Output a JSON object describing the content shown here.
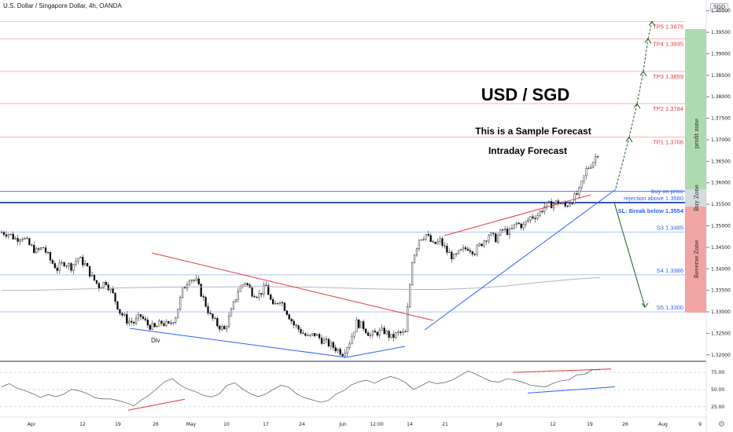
{
  "header": {
    "title": "U.S. Dollar / Singapore Dollar, 4h, OANDA",
    "currency": "SGD"
  },
  "annotations": {
    "main_title": "USD / SGD",
    "subtitle1": "This is a Sample Forecast",
    "subtitle2": "Intraday Forecast",
    "div_label": "Div",
    "buy_on_price": "buy on price",
    "rejection": "rejection above 1.3580",
    "stop_loss": "SL: Break below 1.3554",
    "profit_zone": "profit zone",
    "buy_zone": "Buy Zone",
    "reverse_zone": "Reverse Zone"
  },
  "colors": {
    "tp": "#e53935",
    "support": "#2962ff",
    "profit_zone": "#a5d6a7",
    "reverse_zone": "#ef9a9a",
    "buy_zone": "#cfd8dc",
    "arrows": "#1b5e20"
  },
  "chart_data": {
    "type": "candlestick",
    "price_ticks": [
      "1.40000",
      "1.39500",
      "1.39000",
      "1.38500",
      "1.38000",
      "1.37500",
      "1.37000",
      "1.36500",
      "1.36000",
      "1.35500",
      "1.35000",
      "1.34500",
      "1.34000",
      "1.33500",
      "1.33000",
      "1.32500",
      "1.32000"
    ],
    "price_tick_values": [
      1.4,
      1.395,
      1.39,
      1.385,
      1.38,
      1.375,
      1.37,
      1.365,
      1.36,
      1.355,
      1.35,
      1.345,
      1.34,
      1.335,
      1.33,
      1.325,
      1.32
    ],
    "ylim": [
      1.3185,
      1.4025
    ],
    "x_ticks": [
      "Apr",
      "12",
      "19",
      "26",
      "May",
      "10",
      "17",
      "24",
      "Jun",
      "12:00",
      "14",
      "21",
      "Jul",
      "12",
      "19",
      "26",
      "Aug",
      "9"
    ],
    "tp_levels": [
      {
        "label": "TP5  1.3975",
        "value": 1.3975
      },
      {
        "label": "TP4  1.3935",
        "value": 1.3935
      },
      {
        "label": "TP3  1.3859",
        "value": 1.3859
      },
      {
        "label": "TP2  1.3784",
        "value": 1.3784
      },
      {
        "label": "TP1  1.3706",
        "value": 1.3706
      }
    ],
    "support_levels": [
      {
        "label": "S3  1.3485",
        "value": 1.3485
      },
      {
        "label": "S4  1.3386",
        "value": 1.3386
      },
      {
        "label": "S5  1.3300",
        "value": 1.33
      }
    ],
    "buy_level": 1.358,
    "sl_level": 1.3554,
    "close_path": [
      1.3485,
      1.3482,
      1.347,
      1.3475,
      1.3455,
      1.344,
      1.345,
      1.342,
      1.34,
      1.3415,
      1.3405,
      1.3425,
      1.341,
      1.338,
      1.336,
      1.337,
      1.334,
      1.33,
      1.328,
      1.3275,
      1.329,
      1.327,
      1.3262,
      1.3275,
      1.3268,
      1.329,
      1.335,
      1.338,
      1.337,
      1.333,
      1.329,
      1.327,
      1.3258,
      1.33,
      1.335,
      1.337,
      1.3345,
      1.334,
      1.336,
      1.331,
      1.333,
      1.33,
      1.327,
      1.3255,
      1.324,
      1.3248,
      1.3235,
      1.3225,
      1.3215,
      1.3205,
      1.323,
      1.3275,
      1.3265,
      1.3245,
      1.3252,
      1.3255,
      1.324,
      1.325,
      1.325,
      1.342,
      1.347,
      1.348,
      1.3455,
      1.3465,
      1.344,
      1.3425,
      1.344,
      1.345,
      1.344,
      1.346,
      1.348,
      1.347,
      1.349,
      1.3485,
      1.3505,
      1.35,
      1.352,
      1.3525,
      1.3545,
      1.355,
      1.3555,
      1.3545,
      1.356,
      1.358,
      1.363,
      1.365,
      1.368
    ],
    "ma_path": [
      1.335,
      1.335,
      1.3352,
      1.3354,
      1.3356,
      1.3357,
      1.3358,
      1.3358,
      1.3359,
      1.3358,
      1.3357,
      1.3355,
      1.3353,
      1.3352,
      1.3352,
      1.3355,
      1.336,
      1.3368,
      1.3375,
      1.338
    ],
    "rsi_ticks": [
      "75.00",
      "50.00",
      "25.00"
    ],
    "rsi_tick_values": [
      75,
      50,
      25
    ],
    "rsi_path": [
      55,
      60,
      52,
      48,
      44,
      40,
      42,
      38,
      45,
      50,
      47,
      44,
      40,
      36,
      38,
      35,
      30,
      28,
      34,
      42,
      50,
      60,
      66,
      58,
      52,
      45,
      40,
      38,
      44,
      55,
      60,
      52,
      45,
      40,
      42,
      50,
      58,
      52,
      44,
      40,
      36,
      30,
      34,
      42,
      48,
      55,
      60,
      62,
      58,
      64,
      70,
      66,
      58,
      52,
      56,
      60,
      58,
      62,
      66,
      70,
      76,
      72,
      68,
      60,
      62,
      64,
      66,
      62,
      58,
      55,
      56,
      60,
      62,
      66,
      70,
      74,
      78,
      80
    ]
  }
}
